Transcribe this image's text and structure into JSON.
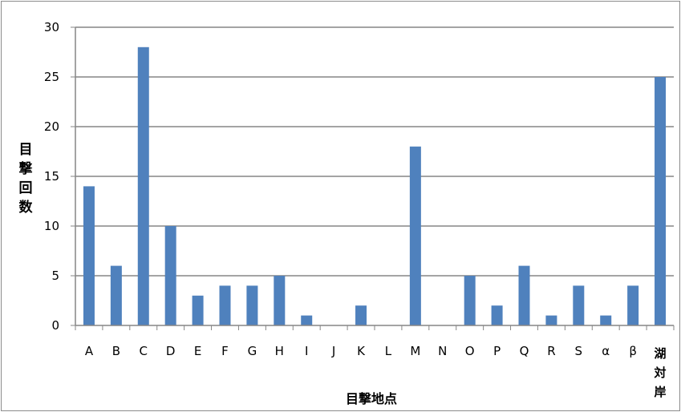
{
  "chart_data": {
    "type": "bar",
    "xlabel": "目撃地点",
    "ylabel": "目撃回数",
    "ylim": [
      0,
      30
    ],
    "yticks": [
      "0",
      "5",
      "10",
      "15",
      "20",
      "25",
      "30"
    ],
    "grid": true,
    "legend": "none",
    "categories": [
      "A",
      "B",
      "C",
      "D",
      "E",
      "F",
      "G",
      "H",
      "I",
      "J",
      "K",
      "L",
      "M",
      "N",
      "O",
      "P",
      "Q",
      "R",
      "S",
      "α",
      "β",
      "湖対岸"
    ],
    "values": [
      14,
      6,
      28,
      10,
      3,
      4,
      4,
      5,
      1,
      0,
      2,
      0,
      18,
      0,
      5,
      2,
      6,
      1,
      4,
      1,
      4,
      25
    ],
    "bar_color": "#4f81bd",
    "grid_color": "#868686"
  }
}
